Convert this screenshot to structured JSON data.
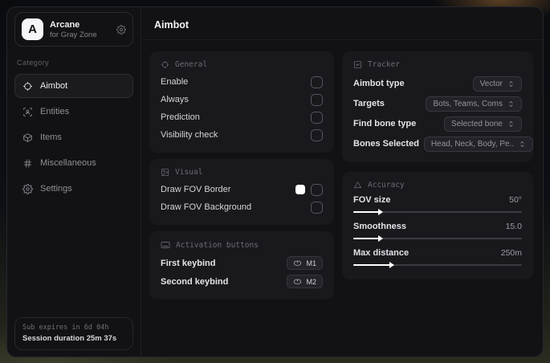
{
  "app": {
    "logo_letter": "A",
    "name": "Arcane",
    "subtitle": "for Gray Zone"
  },
  "sidebar": {
    "category_label": "Category",
    "items": [
      {
        "label": "Aimbot"
      },
      {
        "label": "Entities"
      },
      {
        "label": "Items"
      },
      {
        "label": "Miscellaneous"
      },
      {
        "label": "Settings"
      }
    ],
    "footer": {
      "line1": "Sub expires in 6d 04h",
      "line2": "Session duration 25m 37s"
    }
  },
  "main": {
    "title": "Aimbot",
    "panels": {
      "general": {
        "title": "General",
        "rows": [
          {
            "label": "Enable",
            "checked": false
          },
          {
            "label": "Always",
            "checked": false
          },
          {
            "label": "Prediction",
            "checked": false
          },
          {
            "label": "Visibility check",
            "checked": false
          }
        ]
      },
      "visual": {
        "title": "Visual",
        "rows": [
          {
            "label": "Draw FOV Border",
            "swatch": "#ffffff",
            "checked": false
          },
          {
            "label": "Draw FOV Background",
            "checked": false
          }
        ]
      },
      "activation": {
        "title": "Activation buttons",
        "rows": [
          {
            "label": "First keybind",
            "key": "M1"
          },
          {
            "label": "Second keybind",
            "key": "M2"
          }
        ]
      },
      "tracker": {
        "title": "Tracker",
        "rows": [
          {
            "label": "Aimbot type",
            "value": "Vector"
          },
          {
            "label": "Targets",
            "value": "Bots, Teams, Coms"
          },
          {
            "label": "Find bone type",
            "value": "Selected bone"
          },
          {
            "label": "Bones Selected",
            "value": "Head, Neck, Body, Pe.."
          }
        ]
      },
      "accuracy": {
        "title": "Accuracy",
        "rows": [
          {
            "label": "FOV size",
            "value": "50°",
            "fill_pct": 15
          },
          {
            "label": "Smoothness",
            "value": "15.0",
            "fill_pct": 15
          },
          {
            "label": "Max distance",
            "value": "250m",
            "fill_pct": 22
          }
        ]
      }
    }
  },
  "colors": {
    "window_bg": "#121215",
    "panel_bg": "#19191d",
    "accent_swatch": "#ffffff",
    "text_primary": "#f0f0f3",
    "text_dim": "#8f8f97"
  }
}
